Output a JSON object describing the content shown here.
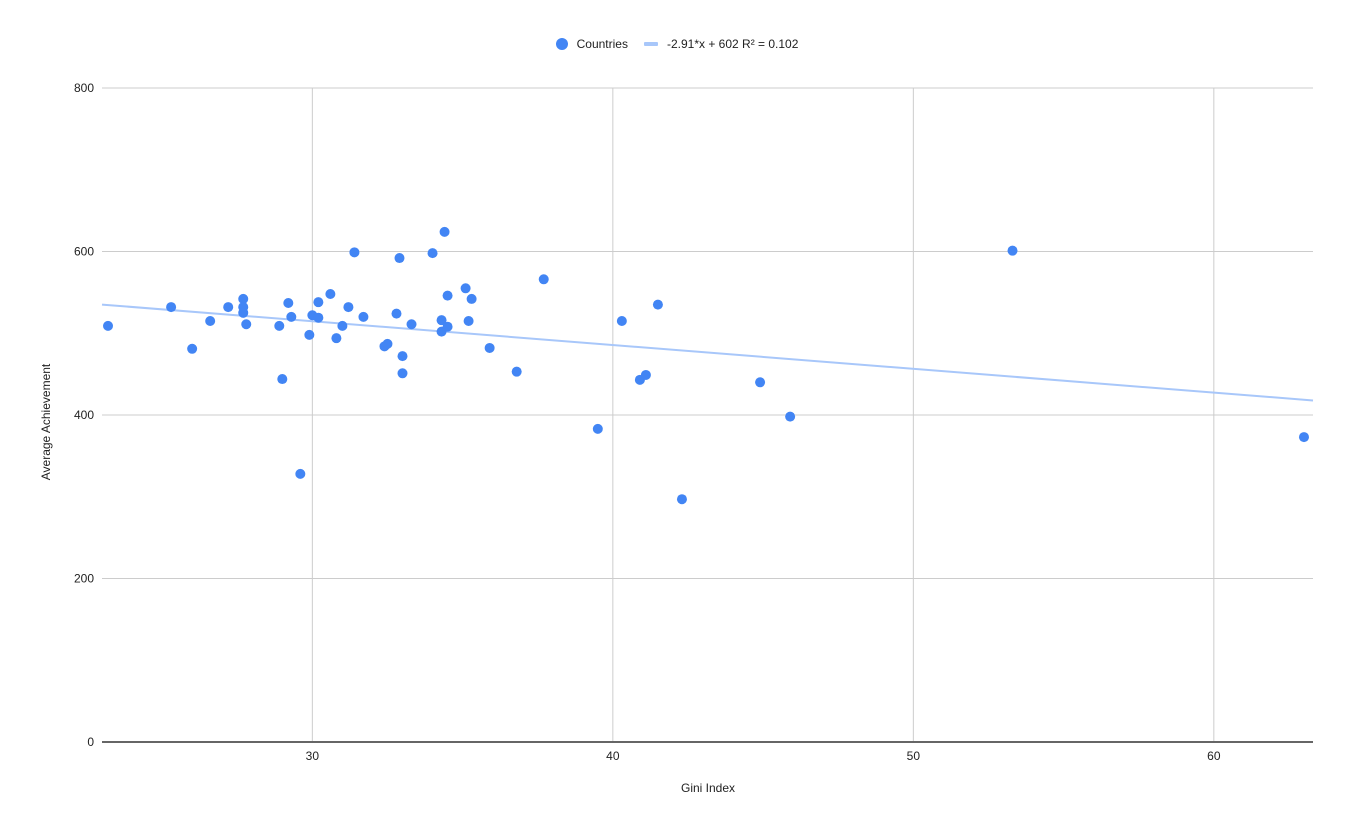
{
  "chart_data": {
    "type": "scatter",
    "title": "",
    "xlabel": "Gini Index",
    "ylabel": "Average Achievement",
    "xlim": [
      23,
      63.3
    ],
    "ylim": [
      0,
      800
    ],
    "xticks": [
      30,
      40,
      50,
      60
    ],
    "yticks": [
      0,
      200,
      400,
      600,
      800
    ],
    "grid": true,
    "legend_position": "top",
    "series": [
      {
        "name": "Countries",
        "color": "#4285f4",
        "points": [
          [
            23.2,
            509
          ],
          [
            25.3,
            532
          ],
          [
            26.0,
            481
          ],
          [
            26.6,
            515
          ],
          [
            27.2,
            532
          ],
          [
            27.7,
            542
          ],
          [
            27.7,
            532
          ],
          [
            27.7,
            525
          ],
          [
            27.8,
            511
          ],
          [
            28.9,
            509
          ],
          [
            29.0,
            444
          ],
          [
            29.2,
            537
          ],
          [
            29.3,
            520
          ],
          [
            29.6,
            328
          ],
          [
            29.9,
            498
          ],
          [
            30.0,
            522
          ],
          [
            30.2,
            538
          ],
          [
            30.2,
            519
          ],
          [
            30.6,
            548
          ],
          [
            30.8,
            494
          ],
          [
            31.0,
            509
          ],
          [
            31.2,
            532
          ],
          [
            31.4,
            599
          ],
          [
            31.7,
            520
          ],
          [
            32.4,
            484
          ],
          [
            32.5,
            487
          ],
          [
            32.8,
            524
          ],
          [
            32.9,
            592
          ],
          [
            33.0,
            472
          ],
          [
            33.0,
            451
          ],
          [
            33.3,
            511
          ],
          [
            34.0,
            598
          ],
          [
            34.3,
            516
          ],
          [
            34.3,
            502
          ],
          [
            34.4,
            624
          ],
          [
            34.5,
            546
          ],
          [
            34.5,
            508
          ],
          [
            35.1,
            555
          ],
          [
            35.2,
            515
          ],
          [
            35.3,
            542
          ],
          [
            35.9,
            482
          ],
          [
            36.8,
            453
          ],
          [
            37.7,
            566
          ],
          [
            39.5,
            383
          ],
          [
            40.3,
            515
          ],
          [
            40.9,
            443
          ],
          [
            41.1,
            449
          ],
          [
            41.5,
            535
          ],
          [
            42.3,
            297
          ],
          [
            44.9,
            440
          ],
          [
            45.9,
            398
          ],
          [
            53.3,
            601
          ],
          [
            63.0,
            373
          ]
        ]
      }
    ],
    "trendline": {
      "name": "-2.91*x + 602 R² = 0.102",
      "slope": -2.91,
      "intercept": 602,
      "r_squared": 0.102,
      "color": "#a8c7fa"
    }
  },
  "legend": {
    "series_label": "Countries",
    "trend_label": "-2.91*x + 602 R² = 0.102"
  },
  "axes": {
    "x_title": "Gini Index",
    "y_title": "Average Achievement"
  },
  "colors": {
    "point": "#4285f4",
    "trend": "#a8c7fa",
    "grid": "#cccccc",
    "baseline": "#666666"
  }
}
